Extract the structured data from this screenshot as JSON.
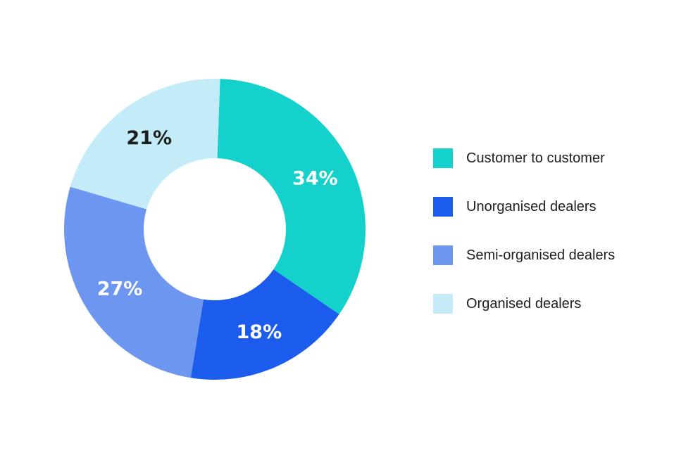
{
  "chart_data": {
    "type": "pie",
    "variant": "donut",
    "categories": [
      "Customer to customer",
      "Unorganised dealers",
      "Semi-organised dealers",
      "Organised dealers"
    ],
    "values": [
      34,
      18,
      27,
      21
    ],
    "value_labels": [
      "34%",
      "18%",
      "27%",
      "21%"
    ],
    "colors": [
      "#15d1cb",
      "#1c5ced",
      "#6d96f1",
      "#c3ecf8"
    ],
    "label_colors": [
      "#ffffff",
      "#ffffff",
      "#ffffff",
      "#1e1e1e"
    ],
    "legend_position": "right",
    "title": ""
  }
}
